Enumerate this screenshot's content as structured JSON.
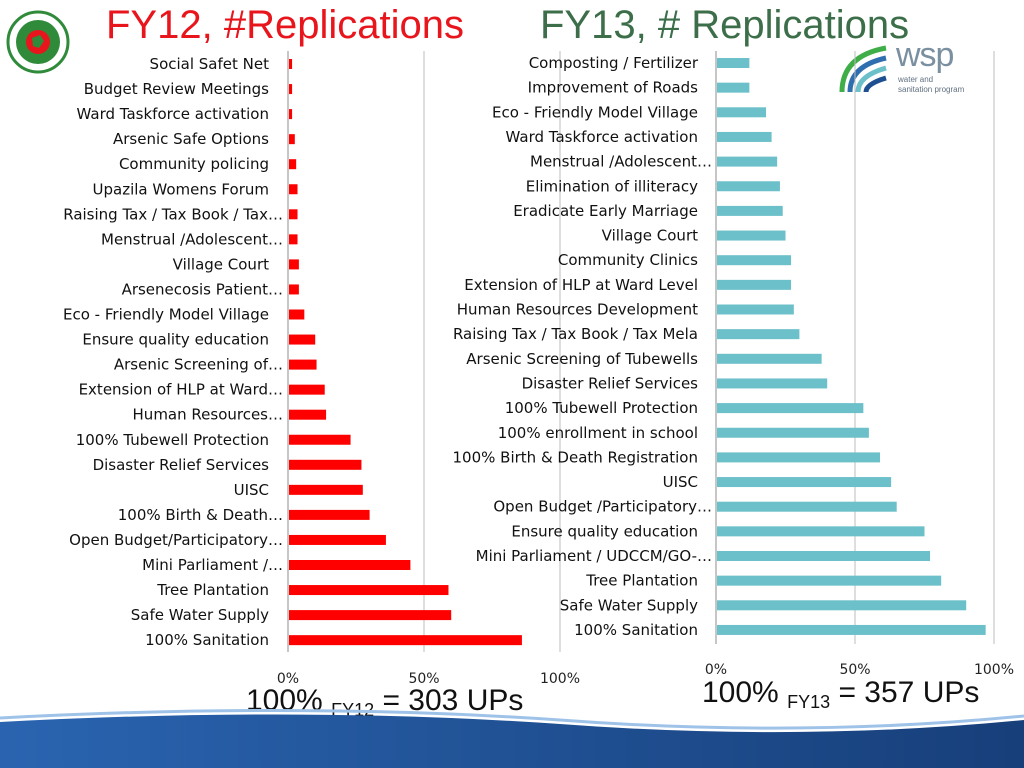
{
  "titles": {
    "fy12": "FY12, #Replications",
    "fy13": "FY13, # Replications"
  },
  "colors": {
    "fy12_title": "#e8161c",
    "fy13_title": "#3c6e4a",
    "fy12_bar": "#ff0000",
    "fy13_bar": "#6cc0c9",
    "band": "#1d4f91"
  },
  "logos": {
    "left_icon": "bangladesh-govt-seal-icon",
    "right_icon": "wsp-logo-icon",
    "right_name": "wsp",
    "right_sub1": "water and",
    "right_sub2": "sanitation program"
  },
  "footnotes": {
    "fy12": {
      "prefix": "100% ",
      "sub": "FY12",
      "suffix": " = 303 UPs"
    },
    "fy13": {
      "prefix": "100% ",
      "sub": "FY13",
      "suffix": " = 357 UPs"
    }
  },
  "chart_data": [
    {
      "type": "bar",
      "orientation": "horizontal",
      "title": "",
      "xlim": [
        0,
        1
      ],
      "xticks": [
        "0%",
        "50%",
        "100%"
      ],
      "grid": true,
      "categories": [
        "Social Safet Net",
        "Budget Review Meetings",
        "Ward Taskforce activation",
        "Arsenic Safe Options",
        "Community policing",
        "Upazila Womens Forum",
        "Raising Tax / Tax Book / Tax…",
        "Menstrual /Adolescent…",
        "Village Court",
        "Arsenecosis Patient…",
        "Eco - Friendly Model Village",
        "Ensure quality education",
        "Arsenic Screening of…",
        "Extension of HLP at Ward…",
        "Human Resources…",
        "100% Tubewell Protection",
        "Disaster Relief Services",
        "UISC",
        "100% Birth & Death…",
        "Open Budget/Participatory…",
        "Mini Parliament /…",
        "Tree Plantation",
        "Safe Water Supply",
        "100% Sanitation"
      ],
      "values": [
        0.015,
        0.015,
        0.015,
        0.025,
        0.03,
        0.035,
        0.035,
        0.035,
        0.04,
        0.04,
        0.06,
        0.1,
        0.105,
        0.135,
        0.14,
        0.23,
        0.27,
        0.275,
        0.3,
        0.36,
        0.45,
        0.59,
        0.6,
        0.86
      ]
    },
    {
      "type": "bar",
      "orientation": "horizontal",
      "title": "",
      "xlim": [
        0,
        1
      ],
      "xticks": [
        "0%",
        "50%",
        "100%"
      ],
      "grid": true,
      "categories": [
        "Composting / Fertilizer",
        "Improvement of Roads",
        "Eco - Friendly Model Village",
        "Ward Taskforce activation",
        "Menstrual /Adolescent…",
        "Elimination of illiteracy",
        "Eradicate Early Marriage",
        "Village Court",
        "Community Clinics",
        "Extension of HLP at Ward Level",
        "Human Resources Development",
        "Raising Tax / Tax Book / Tax Mela",
        "Arsenic Screening of Tubewells",
        "Disaster Relief Services",
        "100% Tubewell Protection",
        "100% enrollment in school",
        "100% Birth & Death Registration",
        "UISC",
        "Open Budget /Participatory…",
        "Ensure quality education",
        "Mini Parliament / UDCCM/GO-…",
        "Tree Plantation",
        "Safe Water Supply",
        "100% Sanitation"
      ],
      "values": [
        0.12,
        0.12,
        0.18,
        0.2,
        0.22,
        0.23,
        0.24,
        0.25,
        0.27,
        0.27,
        0.28,
        0.3,
        0.38,
        0.4,
        0.53,
        0.55,
        0.59,
        0.63,
        0.65,
        0.75,
        0.77,
        0.81,
        0.9,
        0.97
      ]
    }
  ]
}
